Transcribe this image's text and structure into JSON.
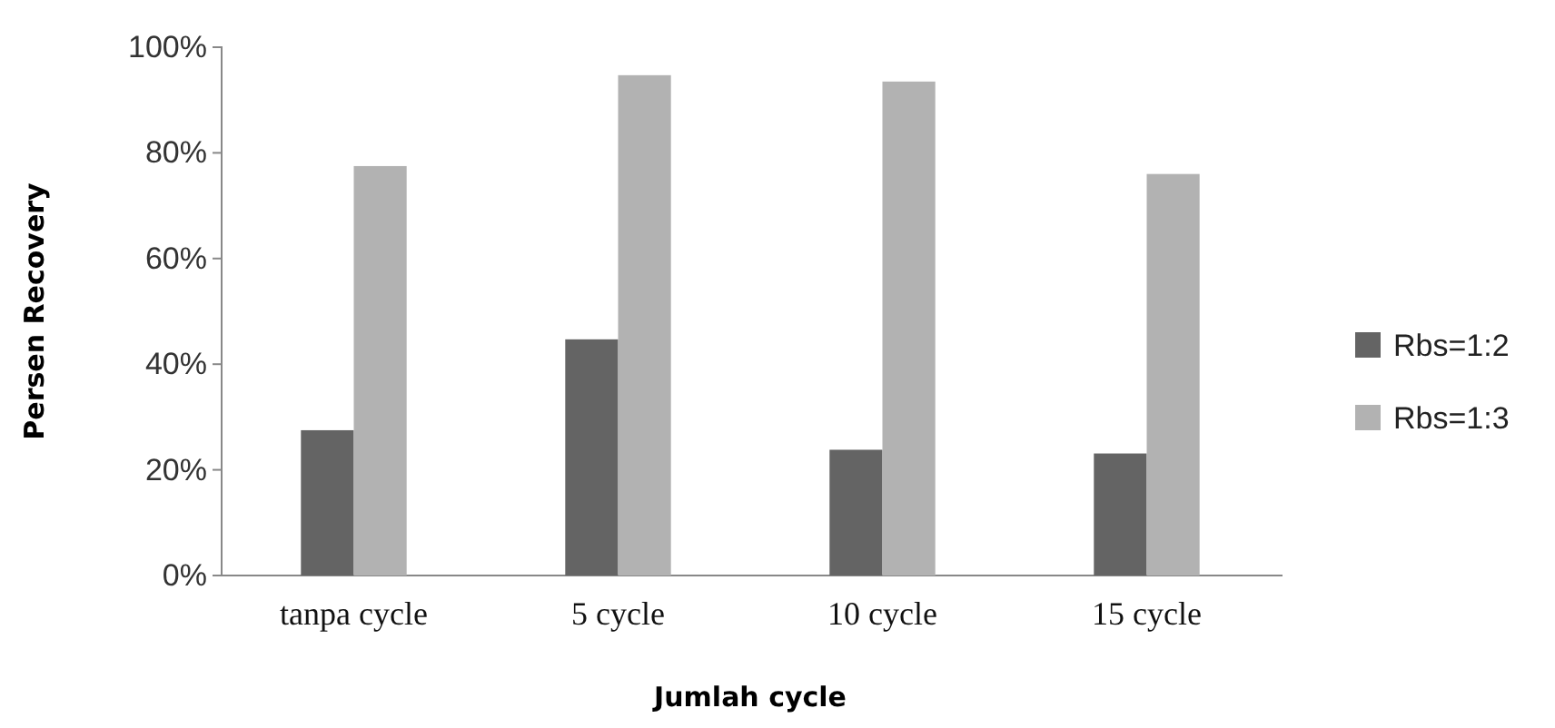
{
  "chart_data": {
    "type": "bar",
    "xlabel": "Jumlah cycle",
    "ylabel": "Persen Recovery",
    "categories": [
      "tanpa cycle",
      "5 cycle",
      "10 cycle",
      "15 cycle"
    ],
    "series": [
      {
        "name": "Rbs=1:2",
        "color": "#646464",
        "values": [
          27.5,
          44.7,
          23.8,
          23.1
        ]
      },
      {
        "name": "Rbs=1:3",
        "color": "#b2b2b2",
        "values": [
          77.5,
          94.7,
          93.5,
          76
        ]
      }
    ],
    "ylim": [
      0,
      100
    ],
    "yticks": [
      {
        "value": 0,
        "label": "0%"
      },
      {
        "value": 20,
        "label": "20%"
      },
      {
        "value": 40,
        "label": "40%"
      },
      {
        "value": 60,
        "label": "60%"
      },
      {
        "value": 80,
        "label": "80%"
      },
      {
        "value": 100,
        "label": "100%"
      }
    ],
    "grid": false,
    "legend": "right"
  }
}
